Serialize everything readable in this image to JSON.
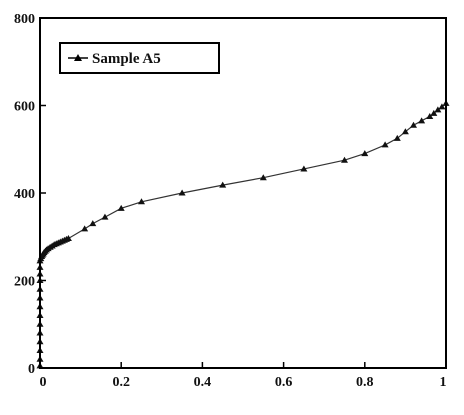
{
  "chart_data": {
    "type": "line",
    "title": "",
    "xlabel": "",
    "ylabel": "",
    "xlim": [
      0,
      1
    ],
    "ylim": [
      0,
      800
    ],
    "x_ticks": [
      "0",
      "0.2",
      "0.4",
      "0.6",
      "0.8",
      "1"
    ],
    "y_ticks": [
      "0",
      "200",
      "400",
      "600",
      "800"
    ],
    "grid": false,
    "legend_position": "top-left",
    "series": [
      {
        "name": "Sample A5",
        "marker": "triangle",
        "color": "#111111",
        "x": [
          0.0,
          0.0,
          0.0,
          0.0,
          0.0,
          0.0,
          0.0,
          0.0,
          0.0,
          0.0,
          0.0,
          0.0,
          0.0,
          0.0,
          0.002,
          0.004,
          0.006,
          0.008,
          0.01,
          0.013,
          0.016,
          0.02,
          0.025,
          0.03,
          0.035,
          0.04,
          0.045,
          0.05,
          0.055,
          0.06,
          0.065,
          0.07,
          0.11,
          0.13,
          0.16,
          0.2,
          0.25,
          0.35,
          0.45,
          0.55,
          0.65,
          0.75,
          0.8,
          0.85,
          0.88,
          0.9,
          0.92,
          0.94,
          0.96,
          0.97,
          0.98,
          0.99,
          1.0
        ],
        "y": [
          5,
          20,
          40,
          60,
          80,
          100,
          120,
          140,
          160,
          180,
          200,
          215,
          230,
          245,
          250,
          255,
          258,
          261,
          264,
          267,
          270,
          273,
          276,
          279,
          282,
          284,
          286,
          288,
          290,
          292,
          294,
          296,
          318,
          330,
          345,
          365,
          380,
          400,
          418,
          435,
          455,
          475,
          490,
          510,
          525,
          540,
          555,
          565,
          575,
          582,
          590,
          597,
          605
        ]
      }
    ]
  }
}
